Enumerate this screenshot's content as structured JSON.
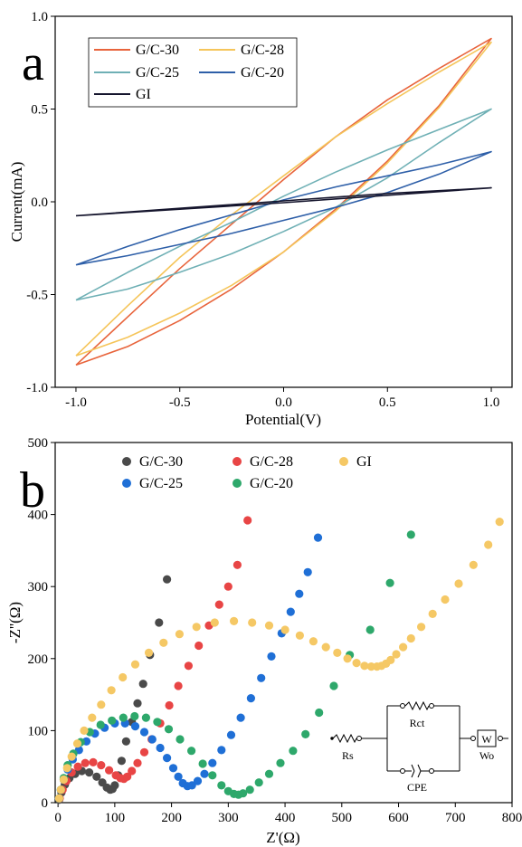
{
  "chart_data": [
    {
      "type": "line",
      "panel_label": "a",
      "xlabel": "Potential(V)",
      "ylabel": "Current(mA)",
      "xlim": [
        -1.1,
        1.1
      ],
      "ylim": [
        -1.0,
        1.0
      ],
      "xticks": [
        "-1.0",
        "-0.5",
        "0.0",
        "0.5",
        "1.0"
      ],
      "yticks": [
        "-1.0",
        "-0.5",
        "0.0",
        "0.5",
        "1.0"
      ],
      "xtick_values": [
        -1.0,
        -0.5,
        0.0,
        0.5,
        1.0
      ],
      "ytick_values": [
        -1.0,
        -0.5,
        0.0,
        0.5,
        1.0
      ],
      "grid": false,
      "legend_position": "top-left",
      "series": [
        {
          "name": "G/C-30",
          "color": "#e8643c",
          "x": [
            -1.0,
            -0.75,
            -0.5,
            -0.25,
            0.0,
            0.25,
            0.5,
            0.75,
            1.0,
            0.75,
            0.5,
            0.25,
            0.0,
            -0.25,
            -0.5,
            -0.75,
            -1.0
          ],
          "y": [
            -0.88,
            -0.62,
            -0.36,
            -0.12,
            0.12,
            0.35,
            0.55,
            0.72,
            0.88,
            0.52,
            0.22,
            -0.04,
            -0.27,
            -0.47,
            -0.64,
            -0.78,
            -0.88
          ]
        },
        {
          "name": "G/C-28",
          "color": "#f5c55a",
          "x": [
            -1.0,
            -0.75,
            -0.5,
            -0.25,
            0.0,
            0.25,
            0.5,
            0.75,
            1.0,
            0.75,
            0.5,
            0.25,
            0.0,
            -0.25,
            -0.5,
            -0.75,
            -1.0
          ],
          "y": [
            -0.83,
            -0.56,
            -0.3,
            -0.07,
            0.14,
            0.35,
            0.53,
            0.7,
            0.86,
            0.51,
            0.21,
            -0.05,
            -0.27,
            -0.45,
            -0.6,
            -0.73,
            -0.83
          ]
        },
        {
          "name": "G/C-25",
          "color": "#6fb0b5",
          "x": [
            -1.0,
            -0.75,
            -0.5,
            -0.25,
            0.0,
            0.25,
            0.5,
            0.75,
            1.0,
            0.75,
            0.5,
            0.25,
            0.0,
            -0.25,
            -0.5,
            -0.75,
            -1.0
          ],
          "y": [
            -0.53,
            -0.38,
            -0.24,
            -0.11,
            0.03,
            0.16,
            0.28,
            0.39,
            0.5,
            0.32,
            0.13,
            -0.03,
            -0.16,
            -0.28,
            -0.38,
            -0.47,
            -0.53
          ]
        },
        {
          "name": "G/C-20",
          "color": "#2e5fa8",
          "x": [
            -1.0,
            -0.75,
            -0.5,
            -0.25,
            0.0,
            0.25,
            0.5,
            0.75,
            1.0,
            0.75,
            0.5,
            0.25,
            0.0,
            -0.25,
            -0.5,
            -0.75,
            -1.0
          ],
          "y": [
            -0.34,
            -0.24,
            -0.15,
            -0.07,
            0.01,
            0.08,
            0.14,
            0.2,
            0.27,
            0.15,
            0.05,
            -0.03,
            -0.1,
            -0.17,
            -0.23,
            -0.29,
            -0.34
          ]
        },
        {
          "name": "GI",
          "color": "#15152d",
          "x": [
            -1.0,
            -0.5,
            0.0,
            0.5,
            1.0,
            0.5,
            0.0,
            -0.5,
            -1.0
          ],
          "y": [
            -0.075,
            -0.04,
            -0.005,
            0.035,
            0.075,
            0.045,
            0.005,
            -0.035,
            -0.075
          ]
        }
      ]
    },
    {
      "type": "scatter",
      "panel_label": "b",
      "xlabel": "Z'(Ω)",
      "ylabel": "-Z''(Ω)",
      "xlim": [
        -5,
        800
      ],
      "ylim": [
        0,
        500
      ],
      "xticks": [
        "0",
        "100",
        "200",
        "300",
        "400",
        "500",
        "600",
        "700",
        "800"
      ],
      "yticks": [
        "0",
        "100",
        "200",
        "300",
        "400",
        "500"
      ],
      "xtick_values": [
        0,
        100,
        200,
        300,
        400,
        500,
        600,
        700,
        800
      ],
      "ytick_values": [
        0,
        100,
        200,
        300,
        400,
        500
      ],
      "grid": false,
      "legend_position": "top-left",
      "series": [
        {
          "name": "G/C-30",
          "color": "#4a4a4a",
          "x": [
            2,
            6,
            12,
            20,
            30,
            42,
            55,
            68,
            78,
            86,
            92,
            96,
            100,
            106,
            112,
            120,
            130,
            140,
            150,
            162,
            178,
            192
          ],
          "y": [
            4,
            14,
            25,
            34,
            40,
            44,
            42,
            36,
            28,
            21,
            18,
            19,
            24,
            38,
            58,
            85,
            112,
            138,
            165,
            205,
            250,
            310
          ]
        },
        {
          "name": "G/C-28",
          "color": "#e84545",
          "x": [
            3,
            8,
            15,
            24,
            35,
            48,
            62,
            76,
            90,
            102,
            110,
            116,
            122,
            130,
            140,
            152,
            165,
            180,
            196,
            212,
            230,
            248,
            266,
            284,
            300,
            316,
            334
          ],
          "y": [
            6,
            18,
            30,
            42,
            50,
            55,
            56,
            52,
            45,
            38,
            34,
            33,
            36,
            44,
            55,
            70,
            88,
            110,
            135,
            162,
            190,
            218,
            246,
            275,
            300,
            330,
            392
          ]
        },
        {
          "name": "G/C-25",
          "color": "#1f6fd6",
          "x": [
            2,
            5,
            10,
            17,
            26,
            37,
            50,
            65,
            82,
            100,
            118,
            136,
            152,
            166,
            180,
            192,
            203,
            212,
            220,
            228,
            236,
            246,
            258,
            272,
            288,
            305,
            322,
            340,
            358,
            376,
            394,
            410,
            425,
            440,
            458
          ],
          "y": [
            6,
            18,
            32,
            46,
            60,
            73,
            85,
            96,
            104,
            110,
            110,
            106,
            98,
            88,
            76,
            62,
            48,
            36,
            27,
            23,
            24,
            30,
            40,
            55,
            73,
            94,
            118,
            145,
            173,
            203,
            235,
            265,
            290,
            320,
            368
          ]
        },
        {
          "name": "G/C-20",
          "color": "#2ea86b",
          "x": [
            2,
            5,
            10,
            17,
            27,
            40,
            56,
            75,
            95,
            115,
            135,
            155,
            175,
            195,
            215,
            235,
            255,
            272,
            288,
            300,
            310,
            318,
            326,
            338,
            354,
            372,
            392,
            414,
            436,
            460,
            486,
            514,
            550,
            585,
            622
          ],
          "y": [
            6,
            18,
            34,
            52,
            68,
            84,
            98,
            108,
            114,
            118,
            120,
            118,
            112,
            102,
            88,
            72,
            54,
            38,
            24,
            16,
            12,
            11,
            13,
            18,
            28,
            40,
            55,
            72,
            95,
            125,
            162,
            205,
            240,
            305,
            372
          ]
        },
        {
          "name": "GI",
          "color": "#f5c865",
          "x": [
            2,
            5,
            10,
            16,
            24,
            34,
            46,
            60,
            76,
            94,
            114,
            136,
            160,
            186,
            214,
            244,
            276,
            310,
            342,
            372,
            400,
            426,
            450,
            472,
            492,
            510,
            526,
            540,
            552,
            562,
            570,
            578,
            586,
            596,
            608,
            622,
            640,
            660,
            682,
            706,
            732,
            758,
            778
          ],
          "y": [
            6,
            18,
            32,
            48,
            64,
            82,
            100,
            118,
            136,
            156,
            174,
            192,
            208,
            222,
            234,
            244,
            250,
            252,
            250,
            246,
            240,
            232,
            224,
            216,
            208,
            200,
            194,
            190,
            189,
            189,
            190,
            193,
            198,
            206,
            216,
            228,
            244,
            262,
            282,
            304,
            330,
            358,
            390
          ]
        }
      ]
    }
  ],
  "circuit": {
    "labels": {
      "rs": "Rs",
      "rct": "Rct",
      "cpe": "CPE",
      "w_box": "W",
      "wo": "Wo"
    }
  }
}
